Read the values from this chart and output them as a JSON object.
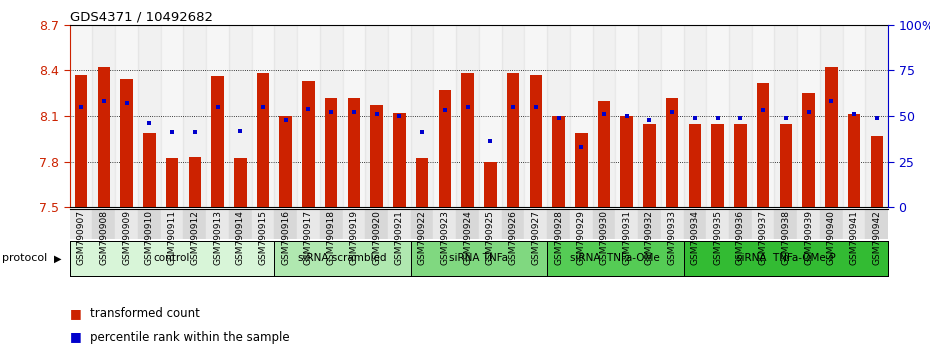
{
  "title": "GDS4371 / 10492682",
  "samples": [
    "GSM790907",
    "GSM790908",
    "GSM790909",
    "GSM790910",
    "GSM790911",
    "GSM790912",
    "GSM790913",
    "GSM790914",
    "GSM790915",
    "GSM790916",
    "GSM790917",
    "GSM790918",
    "GSM790919",
    "GSM790920",
    "GSM790921",
    "GSM790922",
    "GSM790923",
    "GSM790924",
    "GSM790925",
    "GSM790926",
    "GSM790927",
    "GSM790928",
    "GSM790929",
    "GSM790930",
    "GSM790931",
    "GSM790932",
    "GSM790933",
    "GSM790934",
    "GSM790935",
    "GSM790936",
    "GSM790937",
    "GSM790938",
    "GSM790939",
    "GSM790940",
    "GSM790941",
    "GSM790942"
  ],
  "bar_values": [
    8.37,
    8.42,
    8.34,
    7.99,
    7.82,
    7.83,
    8.36,
    7.82,
    8.38,
    8.1,
    8.33,
    8.22,
    8.22,
    8.17,
    8.12,
    7.82,
    8.27,
    8.38,
    7.8,
    8.38,
    8.37,
    8.1,
    7.99,
    8.2,
    8.1,
    8.05,
    8.22,
    8.05,
    8.05,
    8.05,
    8.32,
    8.05,
    8.25,
    8.42,
    8.11,
    7.97
  ],
  "percentile_values": [
    55,
    58,
    57,
    46,
    41,
    41,
    55,
    42,
    55,
    48,
    54,
    52,
    52,
    51,
    50,
    41,
    53,
    55,
    36,
    55,
    55,
    49,
    33,
    51,
    50,
    48,
    52,
    49,
    49,
    49,
    53,
    49,
    52,
    58,
    51,
    49
  ],
  "ylim_left": [
    7.5,
    8.7
  ],
  "ylim_right": [
    0,
    100
  ],
  "yticks_left": [
    7.5,
    7.8,
    8.1,
    8.4,
    8.7
  ],
  "ytick_labels_left": [
    "7.5",
    "7.8",
    "8.1",
    "8.4",
    "8.7"
  ],
  "yticks_right": [
    0,
    25,
    50,
    75,
    100
  ],
  "ytick_labels_right": [
    "0",
    "25",
    "50",
    "75",
    "100%"
  ],
  "bar_color": "#cc2200",
  "dot_color": "#0000cc",
  "grid_lines": [
    7.8,
    8.1,
    8.4
  ],
  "groups": [
    {
      "label": "control",
      "start": 0,
      "end": 9,
      "color": "#d8f5d8"
    },
    {
      "label": "siRNA scrambled",
      "start": 9,
      "end": 15,
      "color": "#b0e8b0"
    },
    {
      "label": "siRNA TNFa",
      "start": 15,
      "end": 21,
      "color": "#80d880"
    },
    {
      "label": "siRNA  TNFa-OMe",
      "start": 21,
      "end": 27,
      "color": "#55cc55"
    },
    {
      "label": "siRNA  TNFa-OMe-P",
      "start": 27,
      "end": 36,
      "color": "#33bb33"
    }
  ],
  "protocol_label": "protocol",
  "legend_bar_label": "transformed count",
  "legend_dot_label": "percentile rank within the sample",
  "xtick_stripe_colors": [
    "#e8e8e8",
    "#d8d8d8"
  ]
}
